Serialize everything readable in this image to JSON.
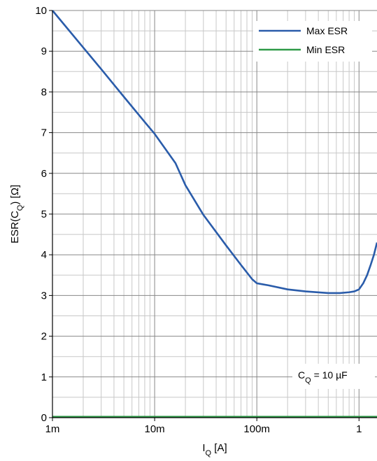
{
  "chart_data": {
    "type": "line",
    "x_scale": "log",
    "xlim": [
      0.001,
      1.5
    ],
    "ylim": [
      0,
      10
    ],
    "x_ticks": [
      {
        "value": 0.001,
        "label": "1m"
      },
      {
        "value": 0.01,
        "label": "10m"
      },
      {
        "value": 0.1,
        "label": "100m"
      },
      {
        "value": 1,
        "label": "1"
      }
    ],
    "y_ticks": [
      {
        "value": 0,
        "label": "0"
      },
      {
        "value": 1,
        "label": "1"
      },
      {
        "value": 2,
        "label": "2"
      },
      {
        "value": 3,
        "label": "3"
      },
      {
        "value": 4,
        "label": "4"
      },
      {
        "value": 5,
        "label": "5"
      },
      {
        "value": 6,
        "label": "6"
      },
      {
        "value": 7,
        "label": "7"
      },
      {
        "value": 8,
        "label": "8"
      },
      {
        "value": 9,
        "label": "9"
      },
      {
        "value": 10,
        "label": "10"
      }
    ],
    "xlabel": {
      "main": "I",
      "sub": "Q",
      "rest": " [A]"
    },
    "ylabel": {
      "main": "ESR(C",
      "sub": "Q",
      "rest": ") [Ω]"
    },
    "grid": true,
    "legend_position": "top-right",
    "annotation": {
      "main": "C",
      "sub": "Q",
      "rest": " = 10 µF"
    },
    "series": [
      {
        "name": "Max ESR",
        "color": "#2a5caa",
        "x": [
          0.001,
          0.002,
          0.003,
          0.005,
          0.008,
          0.01,
          0.016,
          0.02,
          0.03,
          0.05,
          0.07,
          0.09,
          0.1,
          0.13,
          0.2,
          0.3,
          0.5,
          0.65,
          0.8,
          0.9,
          1.0,
          1.1,
          1.2,
          1.3,
          1.4,
          1.5
        ],
        "y": [
          10.0,
          9.09,
          8.56,
          7.88,
          7.26,
          6.97,
          6.25,
          5.71,
          4.98,
          4.23,
          3.75,
          3.4,
          3.3,
          3.25,
          3.15,
          3.1,
          3.06,
          3.06,
          3.08,
          3.1,
          3.15,
          3.3,
          3.5,
          3.75,
          4.0,
          4.3
        ]
      },
      {
        "name": "Min ESR",
        "color": "#2e9a47",
        "x": [
          0.001,
          1.5
        ],
        "y": [
          0.02,
          0.02
        ]
      }
    ]
  }
}
